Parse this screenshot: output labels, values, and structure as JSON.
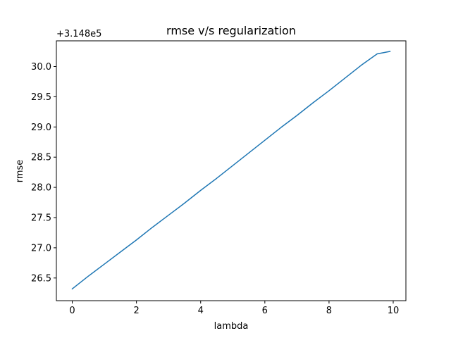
{
  "chart_data": {
    "type": "line",
    "title": "rmse v/s regularization",
    "xlabel": "lambda",
    "ylabel": "rmse",
    "offset_label": "+3.148e5",
    "xlim": [
      -0.495,
      10.395
    ],
    "ylim": [
      26.1245,
      30.4255
    ],
    "grid": false,
    "x_ticks": [
      0,
      2,
      4,
      6,
      8,
      10
    ],
    "x_tick_labels": [
      "0",
      "2",
      "4",
      "6",
      "8",
      "10"
    ],
    "y_ticks": [
      26.5,
      27.0,
      27.5,
      28.0,
      28.5,
      29.0,
      29.5,
      30.0
    ],
    "y_tick_labels": [
      "26.5",
      "27.0",
      "27.5",
      "28.0",
      "28.5",
      "29.0",
      "29.5",
      "30.0"
    ],
    "series": [
      {
        "color": "#1f77b4",
        "x": [
          0.0,
          0.5,
          1.0,
          1.5,
          2.0,
          2.5,
          3.0,
          3.5,
          4.0,
          4.5,
          5.0,
          5.5,
          6.0,
          6.5,
          7.0,
          7.5,
          8.0,
          8.5,
          9.0,
          9.5,
          9.9
        ],
        "y": [
          26.32,
          26.53,
          26.73,
          26.93,
          27.13,
          27.34,
          27.54,
          27.74,
          27.95,
          28.15,
          28.36,
          28.57,
          28.78,
          28.99,
          29.19,
          29.4,
          29.6,
          29.81,
          30.02,
          30.21,
          30.25
        ]
      }
    ]
  }
}
